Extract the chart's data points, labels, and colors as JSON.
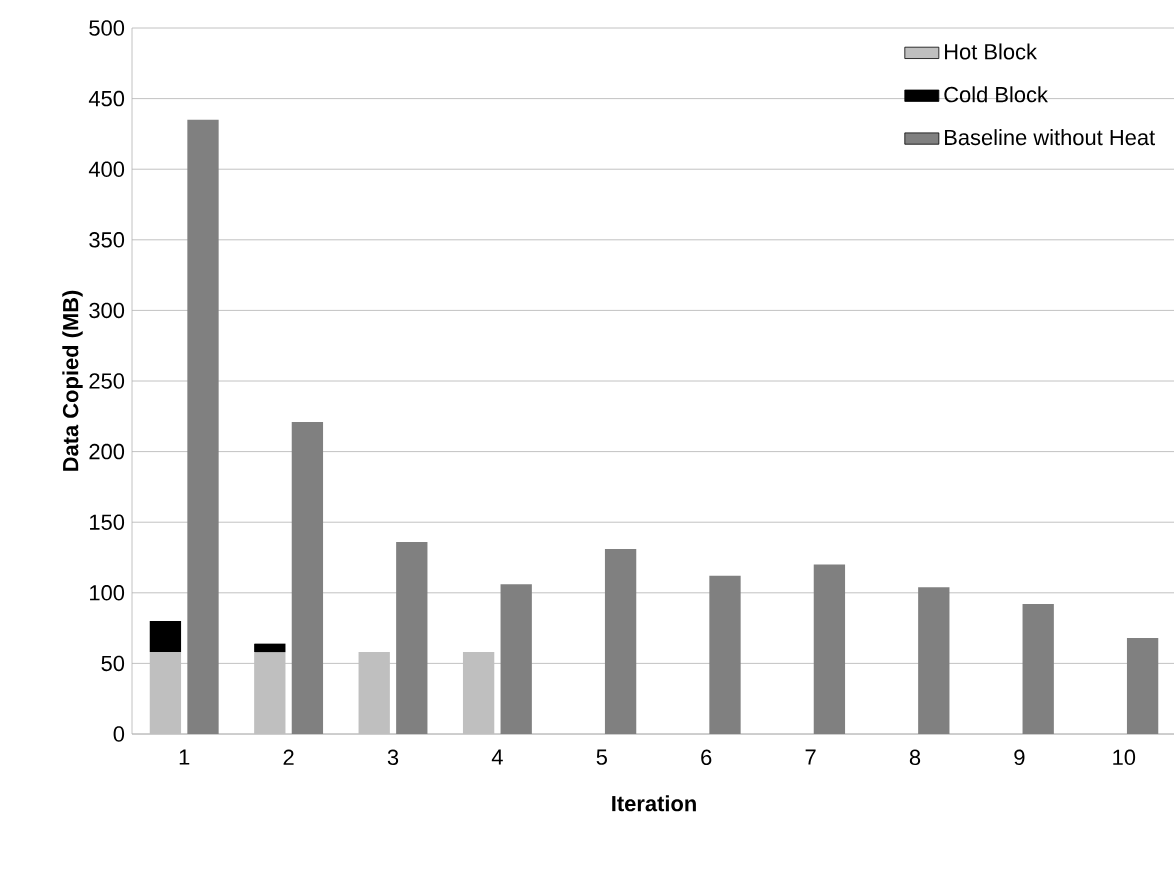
{
  "chart_data": {
    "type": "bar",
    "xlabel": "Iteration",
    "ylabel": "Data Copied (MB)",
    "categories": [
      "1",
      "2",
      "3",
      "4",
      "5",
      "6",
      "7",
      "8",
      "9",
      "10"
    ],
    "series": [
      {
        "name": "Hot Block",
        "color": "#bfbfbf",
        "values": [
          58,
          58,
          58,
          58,
          null,
          null,
          null,
          null,
          null,
          null
        ]
      },
      {
        "name": "Cold Block",
        "color": "#000000",
        "values": [
          22,
          6,
          null,
          null,
          null,
          null,
          null,
          null,
          null,
          null
        ],
        "base": [
          58,
          58,
          null,
          null,
          null,
          null,
          null,
          null,
          null,
          null
        ]
      },
      {
        "name": "Baseline without Heat",
        "color": "#808080",
        "values": [
          435,
          221,
          136,
          106,
          131,
          112,
          120,
          104,
          92,
          68
        ]
      }
    ],
    "ylim": [
      0,
      500
    ],
    "yticks": [
      0,
      50,
      100,
      150,
      200,
      250,
      300,
      350,
      400,
      450,
      500
    ],
    "grid": "y",
    "legend": "top right"
  }
}
